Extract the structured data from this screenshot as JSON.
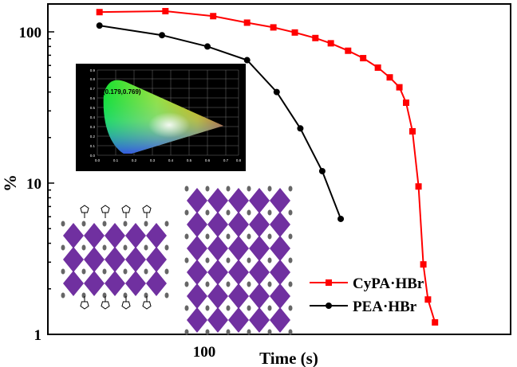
{
  "chart_data": {
    "type": "line",
    "x_scale": "log",
    "y_scale": "log",
    "xlabel": "Time (s)",
    "ylabel": "%",
    "x_tick_labels": [
      "100"
    ],
    "y_tick_labels": [
      "1",
      "10",
      "100"
    ],
    "ylim": [
      1,
      150
    ],
    "grid": false,
    "legend_position": "bottom-right",
    "series": [
      {
        "name": "CyPA·HBr",
        "color": "#ff0000",
        "marker": "square",
        "x": [
          40,
          70,
          105,
          140,
          175,
          210,
          250,
          285,
          330,
          375,
          425,
          470,
          510,
          540,
          570,
          600,
          625,
          650,
          690
        ],
        "y": [
          135,
          137,
          127,
          115,
          107,
          99,
          91,
          84,
          75,
          67,
          58,
          50,
          43,
          34,
          22,
          9.5,
          2.9,
          1.7,
          1.2
        ]
      },
      {
        "name": "PEA·HBr",
        "color": "#000000",
        "marker": "circle",
        "x": [
          40,
          68,
          100,
          140,
          180,
          220,
          265,
          310
        ],
        "y": [
          110,
          95,
          80,
          65,
          40,
          23,
          12,
          5.8
        ]
      }
    ]
  },
  "inset_cie": {
    "annotation": "(0.179,0.769)",
    "x_ticks": [
      "0.0",
      "0.1",
      "0.2",
      "0.3",
      "0.4",
      "0.5",
      "0.6",
      "0.7",
      "0.8"
    ],
    "y_ticks": [
      "0.0",
      "0.1",
      "0.2",
      "0.3",
      "0.4",
      "0.5",
      "0.6",
      "0.7",
      "0.8",
      "0.9"
    ]
  },
  "colors": {
    "crystal": "#7030a0"
  }
}
